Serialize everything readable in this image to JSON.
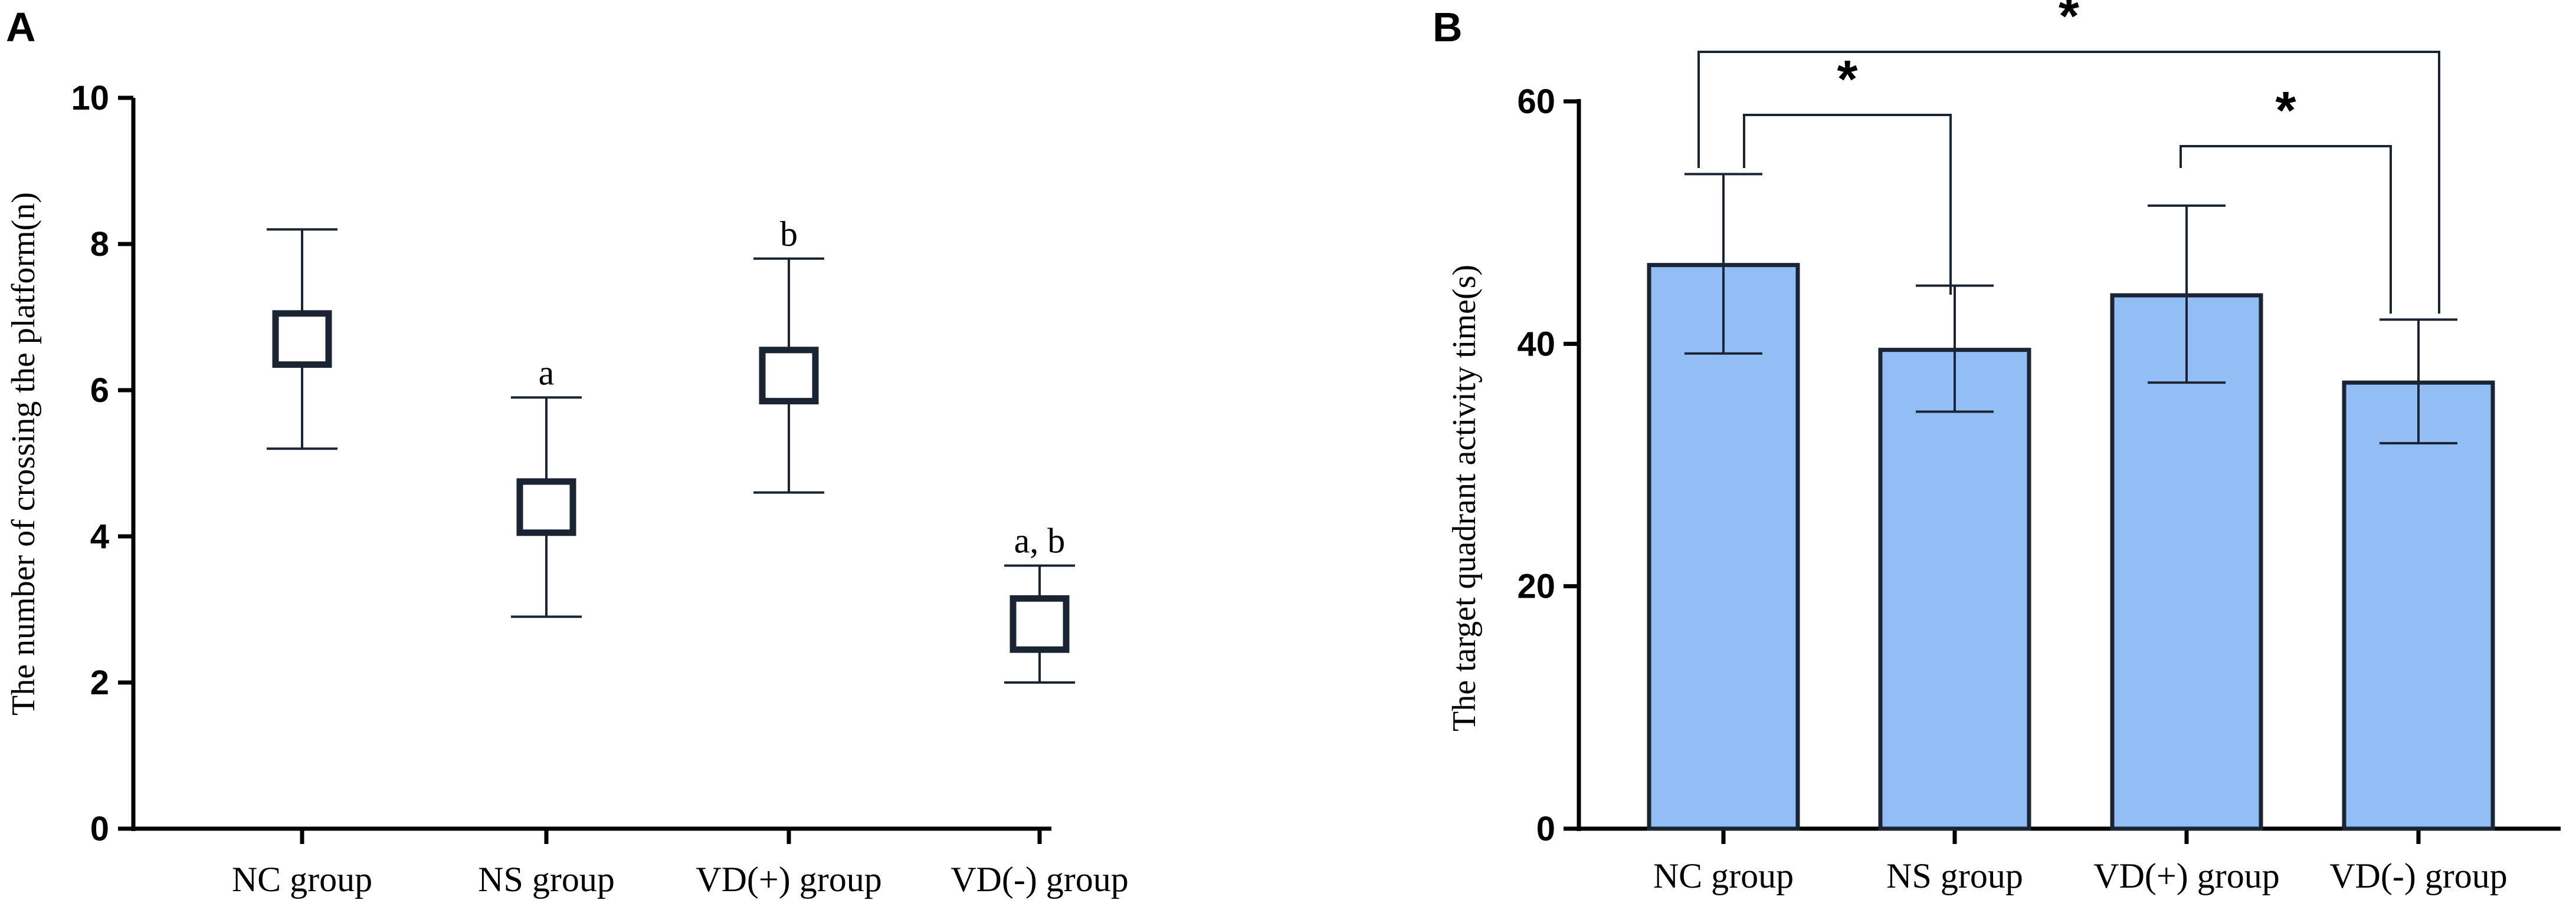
{
  "chart_data": [
    {
      "panel": "A",
      "type": "scatter",
      "title": "",
      "xlabel": "",
      "ylabel": "The number of crossing the platform(n)",
      "ylim": [
        0,
        10
      ],
      "yticks": [
        0,
        2,
        4,
        6,
        8,
        10
      ],
      "categories": [
        "NC group",
        "NS group",
        "VD(+) group",
        "VD(-) group"
      ],
      "means": [
        6.7,
        4.4,
        6.2,
        2.8
      ],
      "box_low": [
        6.35,
        4.05,
        5.85,
        2.45
      ],
      "box_high": [
        7.05,
        4.75,
        6.55,
        3.15
      ],
      "err_low": [
        5.2,
        2.9,
        4.6,
        2.0
      ],
      "err_high": [
        8.2,
        5.9,
        7.8,
        3.6
      ],
      "sig_labels": [
        "",
        "a",
        "b",
        "a, b"
      ],
      "grid": false
    },
    {
      "panel": "B",
      "type": "bar",
      "title": "",
      "xlabel": "",
      "ylabel": "The target quadrant activity time(s)",
      "ylim": [
        0,
        60
      ],
      "yticks": [
        0,
        20,
        40,
        60
      ],
      "categories": [
        "NC group",
        "NS group",
        "VD(+) group",
        "VD(-) group"
      ],
      "values": [
        46.5,
        39.5,
        44.0,
        36.8
      ],
      "err_low": [
        39.2,
        34.4,
        36.8,
        31.8
      ],
      "err_high": [
        54.0,
        44.8,
        51.4,
        42.0
      ],
      "significance": [
        {
          "from": 0,
          "to": 1,
          "label": "*"
        },
        {
          "from": 2,
          "to": 3,
          "label": "*"
        },
        {
          "from": 0,
          "to": 3,
          "label": "*"
        }
      ],
      "bar_color": "#92BDF5",
      "edge_color": "#1B2433",
      "grid": false
    }
  ]
}
